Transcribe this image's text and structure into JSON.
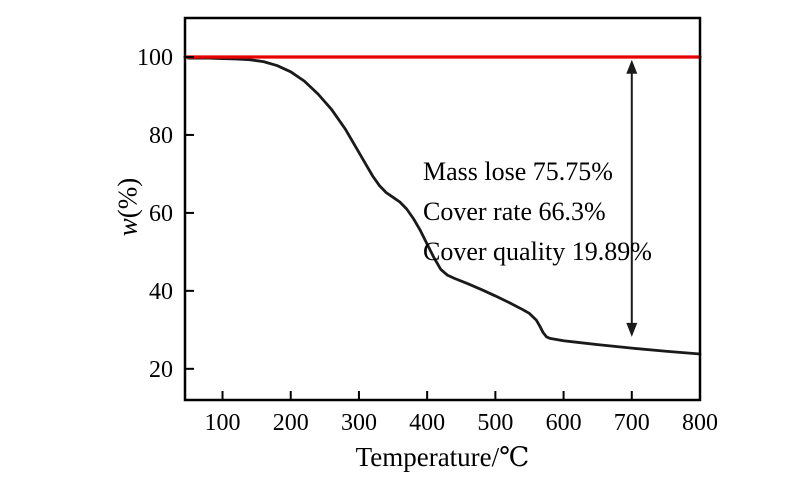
{
  "figure": {
    "background": "#ffffff",
    "ylabel_var": "w",
    "ylabel_unit": "(%)"
  },
  "chart_data": {
    "type": "line",
    "title": "",
    "xlabel": "Temperature/℃",
    "ylabel": "w(%)",
    "xlim": [
      45,
      800
    ],
    "ylim": [
      12,
      110
    ],
    "x_ticks": [
      100,
      200,
      300,
      400,
      500,
      600,
      700,
      800
    ],
    "y_ticks": [
      20,
      40,
      60,
      80,
      100
    ],
    "grid": false,
    "legend": "none",
    "series": [
      {
        "name": "TG curve",
        "color": "#1a1a1a",
        "width": 2.8,
        "points": [
          [
            50,
            99.7
          ],
          [
            80,
            99.7
          ],
          [
            100,
            99.6
          ],
          [
            120,
            99.5
          ],
          [
            140,
            99.3
          ],
          [
            160,
            98.8
          ],
          [
            180,
            97.8
          ],
          [
            200,
            96.2
          ],
          [
            220,
            93.8
          ],
          [
            240,
            90.5
          ],
          [
            260,
            86.5
          ],
          [
            280,
            81.5
          ],
          [
            300,
            75.5
          ],
          [
            310,
            72.5
          ],
          [
            320,
            69.5
          ],
          [
            330,
            67.0
          ],
          [
            340,
            65.2
          ],
          [
            350,
            64.0
          ],
          [
            360,
            62.8
          ],
          [
            370,
            61.0
          ],
          [
            380,
            58.5
          ],
          [
            390,
            55.5
          ],
          [
            400,
            52.0
          ],
          [
            410,
            48.5
          ],
          [
            420,
            45.5
          ],
          [
            430,
            44.0
          ],
          [
            440,
            43.2
          ],
          [
            460,
            41.8
          ],
          [
            480,
            40.3
          ],
          [
            500,
            38.7
          ],
          [
            520,
            37.0
          ],
          [
            540,
            35.2
          ],
          [
            550,
            34.2
          ],
          [
            560,
            32.5
          ],
          [
            565,
            31.0
          ],
          [
            570,
            29.3
          ],
          [
            575,
            28.2
          ],
          [
            580,
            27.8
          ],
          [
            600,
            27.2
          ],
          [
            620,
            26.8
          ],
          [
            650,
            26.2
          ],
          [
            700,
            25.3
          ],
          [
            750,
            24.5
          ],
          [
            800,
            23.8
          ]
        ]
      },
      {
        "name": "baseline 100",
        "color": "#e60000",
        "width": 3.2,
        "points": [
          [
            45,
            100
          ],
          [
            800,
            100
          ]
        ]
      }
    ],
    "annotations": {
      "text_lines": [
        "Mass lose 75.75%",
        "Cover rate 66.3%",
        "Cover quality 19.89%"
      ],
      "arrow": {
        "x": 700,
        "y_top": 99.3,
        "y_bottom": 28.2,
        "double_headed": true
      }
    }
  }
}
